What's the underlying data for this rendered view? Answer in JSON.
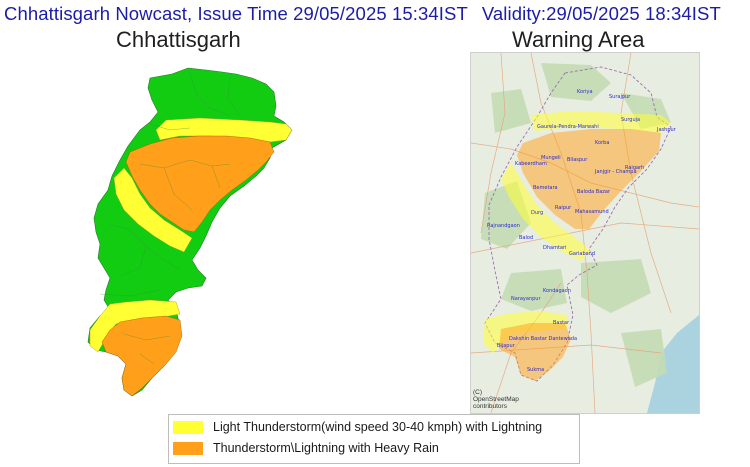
{
  "header": {
    "prefix": "Chhattisgarh Nowcast, Issue Time 29/05/2025 15:34IST",
    "validity": "Validity:29/05/2025 18:34IST"
  },
  "left_panel": {
    "title": "Chhattisgarh"
  },
  "right_panel": {
    "title": "Warning Area",
    "attribution": [
      "(C)",
      "OpenStreetMap",
      "contributors"
    ],
    "districts": [
      "Koriya",
      "Surajpur",
      "Surguja",
      "Gaurela-Pendra-Marwahi",
      "Jashpur",
      "Mungeli",
      "Korba",
      "Bilaspur",
      "Kabeerdham",
      "Raigarh",
      "Janjgir - Champa",
      "Bemetara",
      "Baloda Bazar",
      "Raipur",
      "Mahasamund",
      "Durg",
      "Rajnandgaon",
      "Balod",
      "Dhamtari",
      "Gariaband",
      "Kondagaon",
      "Narayanpur",
      "Bastar",
      "Dakshin Bastar Dantewada",
      "Bijapur",
      "Sukma"
    ]
  },
  "legend": {
    "items": [
      {
        "label": "Light Thunderstorm(wind speed 30-40 kmph) with Lightning",
        "color": "#ffff33"
      },
      {
        "label": "Thunderstorm\\Lightning with Heavy Rain",
        "color": "#ff9f1a"
      }
    ]
  },
  "colors": {
    "green": "#11cc11",
    "yellow": "#ffff33",
    "orange": "#ff9f1a",
    "header_text": "#1c1ca8"
  }
}
